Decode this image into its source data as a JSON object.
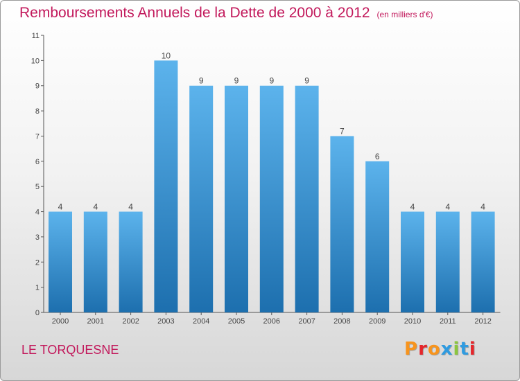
{
  "header": {
    "title": "Remboursements Annuels de la Dette de 2000 à 2012",
    "unit": "(en milliers d'€)"
  },
  "footer": {
    "town": "LE TORQUESNE",
    "brand": "Proxiti",
    "brand_colors": [
      "#f7941d",
      "#e5262b",
      "#f7941d",
      "#2f9be0",
      "#8cc63f",
      "#2f9be0",
      "#e5262b"
    ]
  },
  "colors": {
    "title": "#c2185b",
    "bar_top": "#5cb3ec",
    "bar_bottom": "#1d6fae"
  },
  "chart_data": {
    "type": "bar",
    "categories": [
      "2000",
      "2001",
      "2002",
      "2003",
      "2004",
      "2005",
      "2006",
      "2007",
      "2008",
      "2009",
      "2010",
      "2011",
      "2012"
    ],
    "values": [
      4,
      4,
      4,
      10,
      9,
      9,
      9,
      9,
      7,
      6,
      4,
      4,
      4
    ],
    "title": "Remboursements Annuels de la Dette de 2000 à 2012",
    "ylabel": "",
    "xlabel": "",
    "ylim": [
      0,
      11
    ],
    "yticks": [
      0,
      1,
      2,
      3,
      4,
      5,
      6,
      7,
      8,
      9,
      10,
      11
    ],
    "grid": false,
    "legend": "none"
  }
}
